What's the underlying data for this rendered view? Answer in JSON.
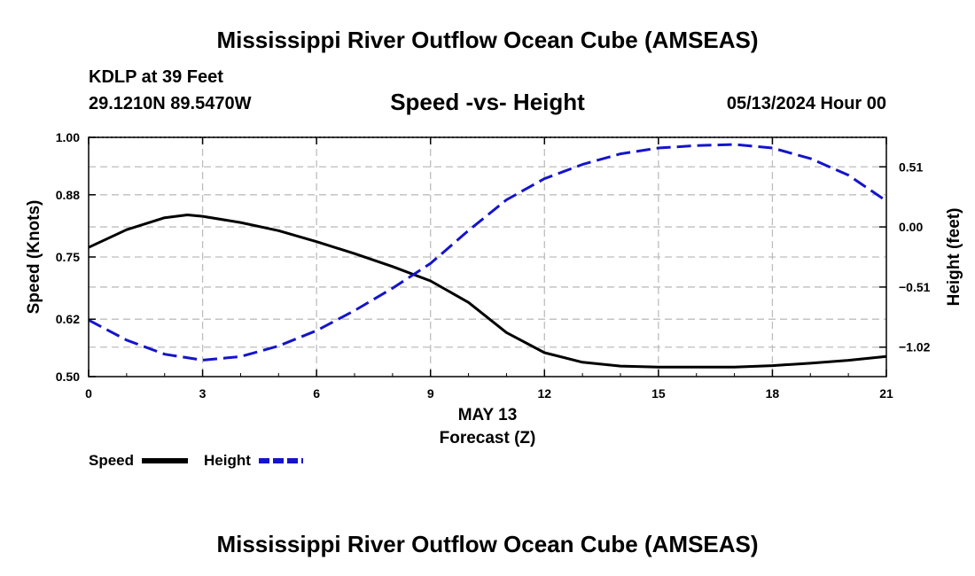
{
  "header": {
    "title": "Mississippi River Outflow Ocean Cube (AMSEAS)",
    "station": "KDLP at 39 Feet",
    "coords": "29.1210N  89.5470W",
    "subtitle": "Speed -vs- Height",
    "datetime": "05/13/2024 Hour 00"
  },
  "footer": {
    "title": "Mississippi River Outflow Ocean Cube (AMSEAS)"
  },
  "chart_data": {
    "type": "line",
    "x_label_date": "MAY 13",
    "xlabel": "Forecast (Z)",
    "ylabel_left": "Speed (Knots)",
    "ylabel_right": "Height (feet)",
    "xlim": [
      0,
      21
    ],
    "ylim_left": [
      0.5,
      1.0
    ],
    "ylim_right": [
      -1.27,
      0.76
    ],
    "x_ticks": [
      0,
      3,
      6,
      9,
      12,
      15,
      18,
      21
    ],
    "x_tick_labels": [
      "0",
      "3",
      "6",
      "9",
      "12",
      "15",
      "18",
      "21"
    ],
    "y_left_ticks": [
      0.5,
      0.62,
      0.75,
      0.88,
      1.0
    ],
    "y_left_tick_labels": [
      "0.50",
      "0.62",
      "0.75",
      "0.88",
      "1.00"
    ],
    "y_right_ticks": [
      0.51,
      0.0,
      -0.51,
      -1.02
    ],
    "y_right_tick_labels": [
      "0.51",
      "0.00",
      "−0.51",
      "−1.02"
    ],
    "grid": true,
    "series": [
      {
        "name": "Speed",
        "axis": "left",
        "color": "#000000",
        "style": "solid",
        "x": [
          0,
          1,
          2,
          2.6,
          3,
          4,
          5,
          6,
          7,
          8,
          9,
          10,
          11,
          12,
          13,
          14,
          15,
          16,
          17,
          18,
          19,
          20,
          21
        ],
        "values": [
          0.77,
          0.807,
          0.832,
          0.838,
          0.835,
          0.822,
          0.805,
          0.782,
          0.757,
          0.73,
          0.7,
          0.655,
          0.592,
          0.55,
          0.53,
          0.522,
          0.52,
          0.52,
          0.52,
          0.523,
          0.528,
          0.534,
          0.542
        ]
      },
      {
        "name": "Height",
        "axis": "right",
        "color": "#1414cc",
        "style": "dashed",
        "x": [
          0,
          1,
          2,
          3,
          4,
          5,
          6,
          7,
          8,
          9,
          10,
          11,
          12,
          13,
          14,
          15,
          16,
          17,
          18,
          19,
          20,
          21
        ],
        "values": [
          -0.79,
          -0.96,
          -1.08,
          -1.13,
          -1.1,
          -1.01,
          -0.88,
          -0.71,
          -0.52,
          -0.31,
          -0.03,
          0.23,
          0.41,
          0.53,
          0.62,
          0.67,
          0.69,
          0.7,
          0.67,
          0.58,
          0.44,
          0.22
        ]
      }
    ],
    "legend": {
      "placement": "bottom-left",
      "entries": [
        "Speed",
        "Height"
      ]
    }
  }
}
